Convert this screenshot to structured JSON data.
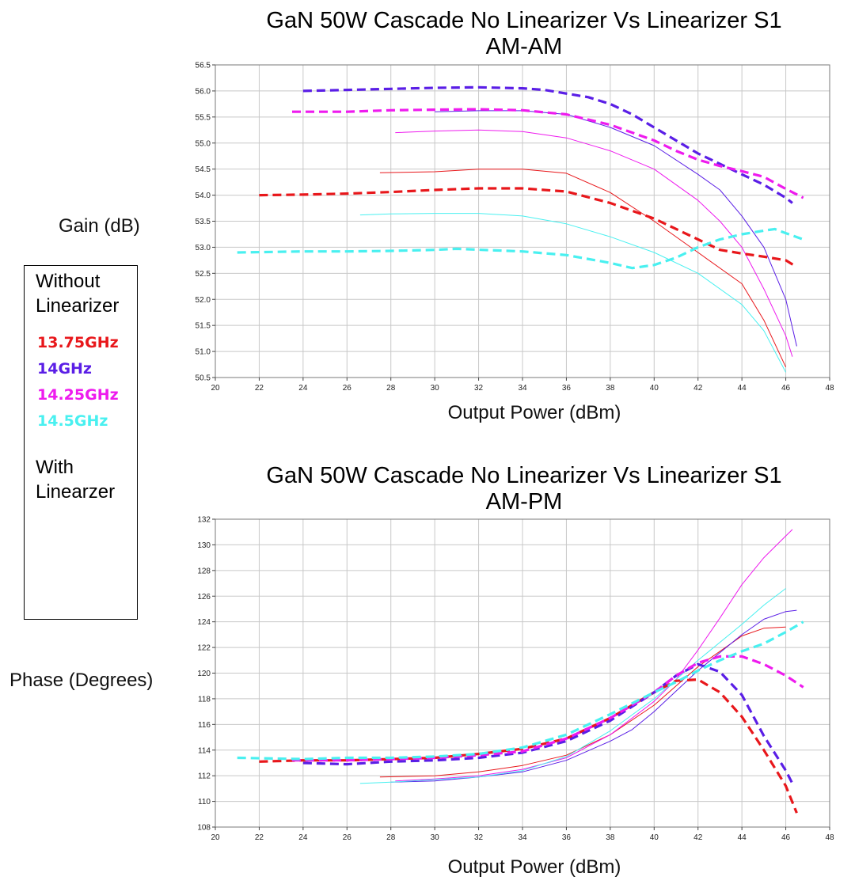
{
  "titles": {
    "am_am": [
      "GaN 50W  Cascade No Linearizer Vs Linearizer S1",
      "AM-AM"
    ],
    "am_pm": [
      "GaN 50W  Cascade No Linearizer Vs Linearizer S1",
      "AM-PM"
    ]
  },
  "legend": {
    "without_heading": [
      "Without",
      "Linearizer"
    ],
    "with_heading": [
      "With",
      "Linearzer"
    ],
    "items": [
      {
        "label": "13.75GHz",
        "color": "#e8171b"
      },
      {
        "label": "14GHz",
        "color": "#5a1ee6"
      },
      {
        "label": "14.25GHz",
        "color": "#ee1bee"
      },
      {
        "label": "14.5GHz",
        "color": "#49f0f0"
      }
    ]
  },
  "chart_data": [
    {
      "type": "line",
      "title": "GaN 50W  Cascade No Linearizer Vs Linearizer S1 AM-AM",
      "xlabel": "Output Power (dBm)",
      "ylabel": "Gain (dB)",
      "xlim": [
        20,
        48
      ],
      "ylim": [
        50.5,
        56.5
      ],
      "xticks": [
        20,
        22,
        24,
        26,
        28,
        30,
        32,
        34,
        36,
        38,
        40,
        42,
        44,
        46,
        48
      ],
      "yticks": [
        50.5,
        51.0,
        51.5,
        52.0,
        52.5,
        53.0,
        53.5,
        54.0,
        54.5,
        55.0,
        55.5,
        56.0,
        56.5
      ],
      "grid": true,
      "series": [
        {
          "name": "13.75GHz",
          "group": "Without Linearizer",
          "color": "#e8171b",
          "style": "solid",
          "x": [
            27.5,
            30,
            32,
            34,
            36,
            38,
            40,
            42,
            44,
            45,
            46
          ],
          "y": [
            54.43,
            54.45,
            54.5,
            54.5,
            54.42,
            54.05,
            53.5,
            52.9,
            52.3,
            51.6,
            50.7
          ]
        },
        {
          "name": "14GHz",
          "group": "Without Linearizer",
          "color": "#5a1ee6",
          "style": "solid",
          "x": [
            30,
            32,
            34,
            36,
            38,
            40,
            42,
            43,
            44,
            45,
            46,
            46.5
          ],
          "y": [
            55.6,
            55.62,
            55.62,
            55.55,
            55.3,
            54.95,
            54.4,
            54.1,
            53.6,
            53.0,
            52.0,
            51.1
          ]
        },
        {
          "name": "14.25GHz",
          "group": "Without Linearizer",
          "color": "#ee1bee",
          "style": "solid",
          "x": [
            28.2,
            30,
            32,
            34,
            36,
            38,
            40,
            42,
            43,
            44,
            45,
            46,
            46.3
          ],
          "y": [
            55.2,
            55.23,
            55.25,
            55.22,
            55.1,
            54.85,
            54.5,
            53.9,
            53.5,
            53.0,
            52.2,
            51.3,
            50.9
          ]
        },
        {
          "name": "14.5GHz",
          "group": "Without Linearizer",
          "color": "#49f0f0",
          "style": "solid",
          "x": [
            26.6,
            28,
            30,
            32,
            34,
            36,
            38,
            40,
            42,
            44,
            45,
            46
          ],
          "y": [
            53.62,
            53.64,
            53.65,
            53.65,
            53.6,
            53.45,
            53.2,
            52.9,
            52.5,
            51.9,
            51.4,
            50.6
          ]
        },
        {
          "name": "13.75GHz",
          "group": "With Linearzer",
          "color": "#e8171b",
          "style": "dashed",
          "x": [
            22,
            24,
            26,
            28,
            30,
            32,
            34,
            36,
            38,
            40,
            42,
            43,
            44,
            45,
            46,
            46.5
          ],
          "y": [
            54.0,
            54.01,
            54.03,
            54.06,
            54.1,
            54.13,
            54.13,
            54.07,
            53.85,
            53.55,
            53.15,
            52.95,
            52.88,
            52.82,
            52.75,
            52.62
          ]
        },
        {
          "name": "14GHz",
          "group": "With Linearzer",
          "color": "#5a1ee6",
          "style": "dashed",
          "x": [
            24,
            26,
            28,
            30,
            32,
            34,
            35,
            37,
            38,
            39,
            40,
            41,
            42,
            43,
            44,
            45,
            46,
            46.3
          ],
          "y": [
            56.0,
            56.02,
            56.04,
            56.06,
            56.07,
            56.05,
            56.02,
            55.88,
            55.75,
            55.55,
            55.3,
            55.05,
            54.8,
            54.6,
            54.4,
            54.2,
            53.95,
            53.85
          ]
        },
        {
          "name": "14.25GHz",
          "group": "With Linearzer",
          "color": "#ee1bee",
          "style": "dashed",
          "x": [
            23.5,
            26,
            28,
            30,
            32,
            34,
            36,
            38,
            40,
            41,
            42,
            43,
            44,
            45,
            46,
            46.8
          ],
          "y": [
            55.6,
            55.6,
            55.63,
            55.64,
            55.65,
            55.63,
            55.55,
            55.35,
            55.05,
            54.85,
            54.68,
            54.56,
            54.46,
            54.35,
            54.12,
            53.95
          ]
        },
        {
          "name": "14.5GHz",
          "group": "With Linearzer",
          "color": "#49f0f0",
          "style": "dashed",
          "x": [
            21,
            24,
            26,
            28,
            30,
            31,
            34,
            36,
            38,
            39,
            40,
            41,
            42,
            43,
            44,
            45,
            45.5,
            46,
            46.8
          ],
          "y": [
            52.9,
            52.92,
            52.92,
            52.93,
            52.95,
            52.97,
            52.92,
            52.85,
            52.7,
            52.6,
            52.66,
            52.8,
            53.0,
            53.15,
            53.25,
            53.32,
            53.35,
            53.27,
            53.15
          ]
        }
      ]
    },
    {
      "type": "line",
      "title": "GaN 50W  Cascade No Linearizer Vs Linearizer S1 AM-PM",
      "xlabel": "Output Power (dBm)",
      "ylabel": "Phase (Degrees)",
      "xlim": [
        20,
        48
      ],
      "ylim": [
        108,
        132
      ],
      "xticks": [
        20,
        22,
        24,
        26,
        28,
        30,
        32,
        34,
        36,
        38,
        40,
        42,
        44,
        46,
        48
      ],
      "yticks": [
        108,
        110,
        112,
        114,
        116,
        118,
        120,
        122,
        124,
        126,
        128,
        130,
        132
      ],
      "grid": true,
      "series": [
        {
          "name": "13.75GHz",
          "group": "Without Linearizer",
          "color": "#e8171b",
          "style": "solid",
          "x": [
            27.5,
            30,
            32,
            34,
            36,
            38,
            40,
            42,
            44,
            45,
            46
          ],
          "y": [
            111.9,
            112.0,
            112.3,
            112.8,
            113.6,
            115.2,
            117.5,
            120.5,
            122.9,
            123.5,
            123.6
          ]
        },
        {
          "name": "14GHz",
          "group": "Without Linearizer",
          "color": "#5a1ee6",
          "style": "solid",
          "x": [
            28,
            30,
            32,
            34,
            36,
            38,
            39,
            40,
            42,
            44,
            45,
            46,
            46.5
          ],
          "y": [
            111.5,
            111.6,
            111.9,
            112.3,
            113.2,
            114.7,
            115.6,
            117.0,
            120.2,
            123.0,
            124.2,
            124.8,
            124.9
          ]
        },
        {
          "name": "14.25GHz",
          "group": "Without Linearizer",
          "color": "#ee1bee",
          "style": "solid",
          "x": [
            28.2,
            30,
            32,
            34,
            36,
            38,
            40,
            41,
            42,
            43,
            44,
            45,
            46,
            46.3
          ],
          "y": [
            111.6,
            111.75,
            112.0,
            112.5,
            113.4,
            115.2,
            117.8,
            119.5,
            121.8,
            124.3,
            126.9,
            129.0,
            130.7,
            131.2
          ]
        },
        {
          "name": "14.5GHz",
          "group": "Without Linearizer",
          "color": "#49f0f0",
          "style": "solid",
          "x": [
            26.6,
            28,
            30,
            32,
            34,
            36,
            38,
            40,
            42,
            44,
            45,
            46
          ],
          "y": [
            111.4,
            111.5,
            111.7,
            111.9,
            112.4,
            113.5,
            115.5,
            118.0,
            121.0,
            123.8,
            125.3,
            126.6
          ]
        },
        {
          "name": "13.75GHz",
          "group": "With Linearzer",
          "color": "#e8171b",
          "style": "dashed",
          "x": [
            22,
            24,
            26,
            28,
            30,
            32,
            34,
            36,
            38,
            40,
            41,
            42,
            43,
            44,
            45,
            46,
            46.5
          ],
          "y": [
            113.1,
            113.2,
            113.2,
            113.3,
            113.4,
            113.7,
            114.1,
            114.9,
            116.5,
            118.5,
            119.4,
            119.5,
            118.5,
            116.6,
            114.0,
            111.2,
            109.1
          ]
        },
        {
          "name": "14GHz",
          "group": "With Linearzer",
          "color": "#5a1ee6",
          "style": "dashed",
          "x": [
            24,
            26,
            28,
            30,
            32,
            34,
            36,
            38,
            40,
            41,
            42,
            43,
            44,
            45,
            46,
            46.3
          ],
          "y": [
            113.0,
            112.9,
            113.1,
            113.2,
            113.4,
            113.8,
            114.7,
            116.3,
            118.5,
            119.8,
            120.7,
            120.1,
            118.3,
            115.1,
            112.4,
            111.4
          ]
        },
        {
          "name": "14.25GHz",
          "group": "With Linearzer",
          "color": "#ee1bee",
          "style": "dashed",
          "x": [
            23.5,
            26,
            28,
            30,
            32,
            34,
            36,
            38,
            40,
            41,
            42,
            43,
            44,
            45,
            46,
            46.8
          ],
          "y": [
            113.2,
            113.2,
            113.3,
            113.4,
            113.6,
            113.9,
            114.9,
            116.5,
            118.5,
            119.8,
            120.8,
            121.3,
            121.3,
            120.7,
            119.8,
            118.9
          ]
        },
        {
          "name": "14.5GHz",
          "group": "With Linearzer",
          "color": "#49f0f0",
          "style": "dashed",
          "x": [
            21,
            24,
            26,
            28,
            30,
            32,
            34,
            36,
            38,
            40,
            41,
            42,
            43,
            44,
            45,
            46,
            46.8
          ],
          "y": [
            113.4,
            113.3,
            113.4,
            113.4,
            113.5,
            113.7,
            114.2,
            115.2,
            116.8,
            118.5,
            119.3,
            120.2,
            121.0,
            121.7,
            122.3,
            123.2,
            124.0
          ]
        }
      ]
    }
  ]
}
